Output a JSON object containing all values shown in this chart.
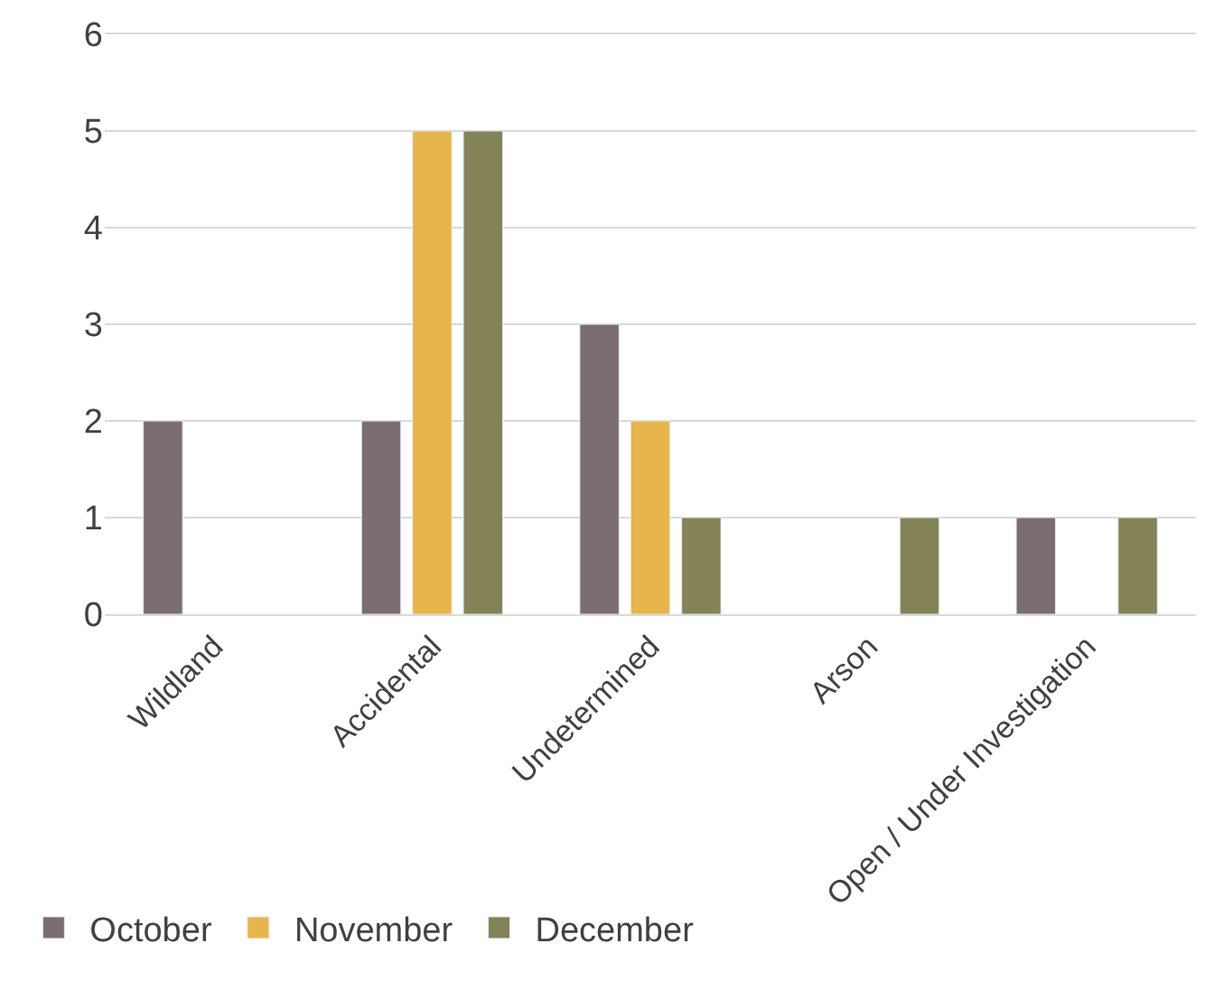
{
  "chart_data": {
    "type": "bar",
    "categories": [
      "Wildland",
      "Accidental",
      "Undetermined",
      "Arson",
      "Open / Under Investigation"
    ],
    "series": [
      {
        "name": "October",
        "color": "#7b6d72",
        "values": [
          2,
          2,
          3,
          null,
          1
        ]
      },
      {
        "name": "November",
        "color": "#e8b54c",
        "values": [
          null,
          5,
          2,
          null,
          null
        ]
      },
      {
        "name": "December",
        "color": "#848357",
        "values": [
          null,
          5,
          1,
          1,
          1
        ]
      }
    ],
    "ylim": [
      0,
      6
    ],
    "yticks": [
      0,
      1,
      2,
      3,
      4,
      5,
      6
    ],
    "grid": "y",
    "legend": "bottom left"
  }
}
